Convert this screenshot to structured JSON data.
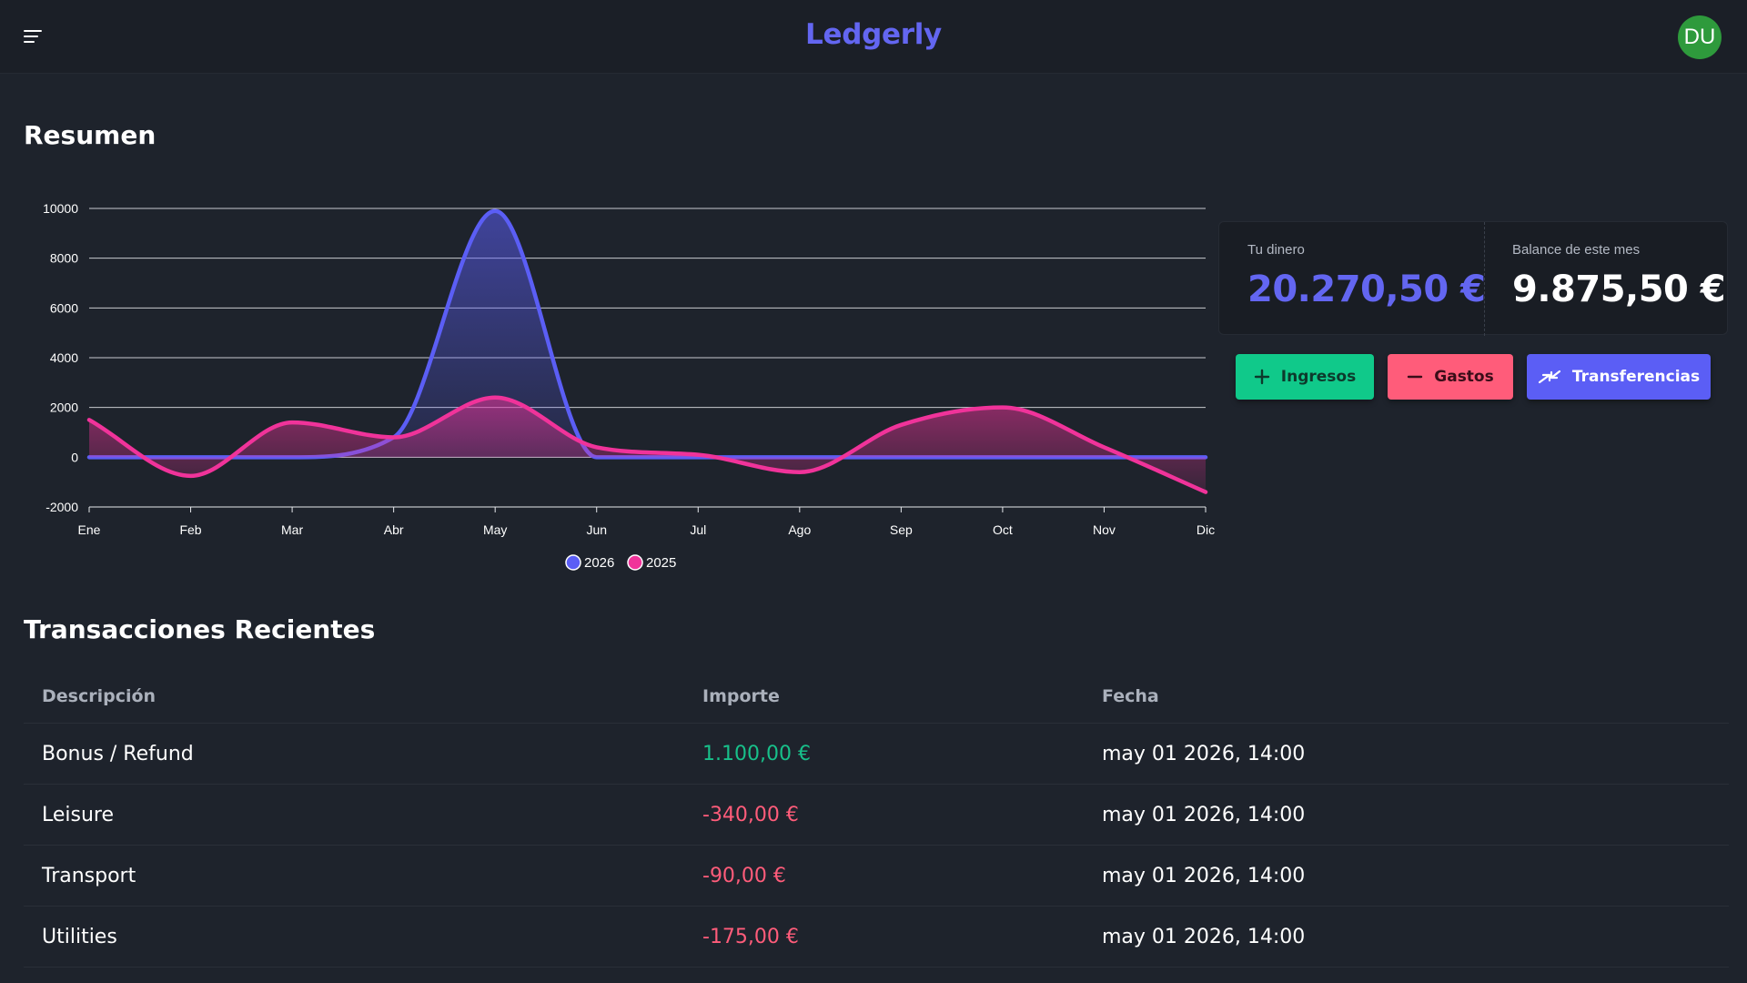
{
  "header": {
    "title": "Ledgerly",
    "avatar_initials": "DU",
    "avatar_color": "#2e9a3c",
    "menu_icon": "hamburger-menu-icon"
  },
  "summary": {
    "title": "Resumen"
  },
  "chart_data": {
    "type": "area",
    "categories": [
      "Ene",
      "Feb",
      "Mar",
      "Abr",
      "May",
      "Jun",
      "Jul",
      "Ago",
      "Sep",
      "Oct",
      "Nov",
      "Dic"
    ],
    "y_ticks": [
      -2000,
      0,
      2000,
      4000,
      6000,
      8000,
      10000
    ],
    "ylim": [
      -2000,
      10000
    ],
    "grid": true,
    "legend_position": "bottom",
    "series": [
      {
        "name": "2026",
        "color": "#5b5ef5",
        "values": [
          0,
          0,
          0,
          800,
          9900,
          0,
          0,
          0,
          0,
          0,
          0,
          0
        ]
      },
      {
        "name": "2025",
        "color": "#f0339a",
        "values": [
          1500,
          -750,
          1400,
          800,
          2400,
          400,
          100,
          -600,
          1300,
          2000,
          400,
          -1400
        ]
      }
    ]
  },
  "stats": {
    "money_label": "Tu dinero",
    "money_value": "20.270,50 €",
    "money_color": "#6366f1",
    "balance_label": "Balance de este mes",
    "balance_value": "9.875,50 €"
  },
  "actions": {
    "income_label": "Ingresos",
    "income_icon": "plus-icon",
    "expense_label": "Gastos",
    "expense_icon": "minus-icon",
    "transfer_label": "Transferencias",
    "transfer_icon": "transfer-arrows-icon"
  },
  "transactions": {
    "title": "Transacciones Recientes",
    "columns": [
      "Descripción",
      "Importe",
      "Fecha"
    ],
    "rows": [
      {
        "description": "Bonus / Refund",
        "amount": "1.100,00 €",
        "date": "may 01 2026, 14:00"
      },
      {
        "description": "Leisure",
        "amount": "-340,00 €",
        "date": "may 01 2026, 14:00"
      },
      {
        "description": "Transport",
        "amount": "-90,00 €",
        "date": "may 01 2026, 14:00"
      },
      {
        "description": "Utilities",
        "amount": "-175,00 €",
        "date": "may 01 2026, 14:00"
      }
    ]
  }
}
